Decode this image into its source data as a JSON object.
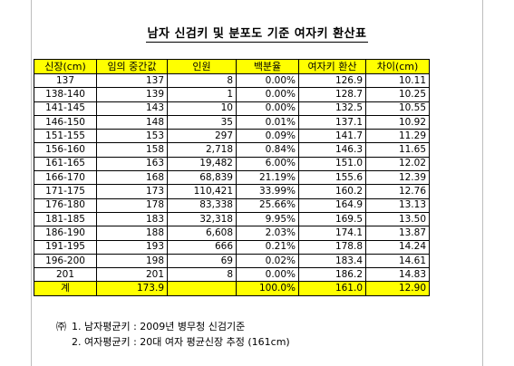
{
  "title": "남자 신검키 및 분포도 기준 여자키 환산표",
  "table": {
    "headers": [
      "신장(cm)",
      "임의 중간값",
      "인원",
      "백분율",
      "여자키 환산",
      "차이(cm)"
    ],
    "rows": [
      [
        "137",
        "137",
        "8",
        "0.00%",
        "126.9",
        "10.11"
      ],
      [
        "138-140",
        "139",
        "1",
        "0.00%",
        "128.7",
        "10.25"
      ],
      [
        "141-145",
        "143",
        "10",
        "0.00%",
        "132.5",
        "10.55"
      ],
      [
        "146-150",
        "148",
        "35",
        "0.01%",
        "137.1",
        "10.92"
      ],
      [
        "151-155",
        "153",
        "297",
        "0.09%",
        "141.7",
        "11.29"
      ],
      [
        "156-160",
        "158",
        "2,718",
        "0.84%",
        "146.3",
        "11.65"
      ],
      [
        "161-165",
        "163",
        "19,482",
        "6.00%",
        "151.0",
        "12.02"
      ],
      [
        "166-170",
        "168",
        "68,839",
        "21.19%",
        "155.6",
        "12.39"
      ],
      [
        "171-175",
        "173",
        "110,421",
        "33.99%",
        "160.2",
        "12.76"
      ],
      [
        "176-180",
        "178",
        "83,338",
        "25.66%",
        "164.9",
        "13.13"
      ],
      [
        "181-185",
        "183",
        "32,318",
        "9.95%",
        "169.5",
        "13.50"
      ],
      [
        "186-190",
        "188",
        "6,608",
        "2.03%",
        "174.1",
        "13.87"
      ],
      [
        "191-195",
        "193",
        "666",
        "0.21%",
        "178.8",
        "14.24"
      ],
      [
        "196-200",
        "198",
        "69",
        "0.02%",
        "183.4",
        "14.61"
      ],
      [
        "201",
        "201",
        "8",
        "0.00%",
        "186.2",
        "14.83"
      ]
    ],
    "total": [
      "계",
      "173.9",
      "",
      "100.0%",
      "161.0",
      "12.90"
    ]
  },
  "notes": {
    "mark": "㈜",
    "line1": "1. 남자평균키 : 2009년 병무청 신검기준",
    "line2": "2. 여자평균키 : 20대 여자 평균신장 추정 (161cm)"
  },
  "colors": {
    "highlight": "#ffff00",
    "grid": "#000000"
  }
}
